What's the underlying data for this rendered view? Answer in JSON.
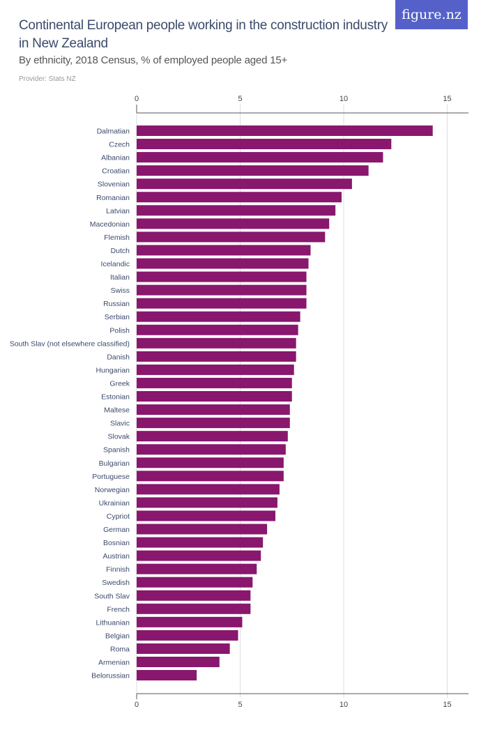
{
  "header": {
    "title": "Continental European people working in the construction industry in New Zealand",
    "subtitle": "By ethnicity, 2018 Census, % of employed people aged 15+",
    "provider": "Provider: Stats NZ",
    "logo_text": "figure.nz"
  },
  "colors": {
    "bar": "#88176d",
    "logo_bg": "#5561c9",
    "title": "#3b4a6b"
  },
  "chart_data": {
    "type": "bar",
    "orientation": "horizontal",
    "title": "Continental European people working in the construction industry in New Zealand",
    "subtitle": "By ethnicity, 2018 Census, % of employed people aged 15+",
    "xlim": [
      0,
      16
    ],
    "xticks": [
      0,
      5,
      10,
      15
    ],
    "grid": true,
    "categories": [
      "Dalmatian",
      "Czech",
      "Albanian",
      "Croatian",
      "Slovenian",
      "Romanian",
      "Latvian",
      "Macedonian",
      "Flemish",
      "Dutch",
      "Icelandic",
      "Italian",
      "Swiss",
      "Russian",
      "Serbian",
      "Polish",
      "South Slav (not elsewhere classified)",
      "Danish",
      "Hungarian",
      "Greek",
      "Estonian",
      "Maltese",
      "Slavic",
      "Slovak",
      "Spanish",
      "Bulgarian",
      "Portuguese",
      "Norwegian",
      "Ukrainian",
      "Cypriot",
      "German",
      "Bosnian",
      "Austrian",
      "Finnish",
      "Swedish",
      "South Slav",
      "French",
      "Lithuanian",
      "Belgian",
      "Roma",
      "Armenian",
      "Belorussian"
    ],
    "values": [
      14.3,
      12.3,
      11.9,
      11.2,
      10.4,
      9.9,
      9.6,
      9.3,
      9.1,
      8.4,
      8.3,
      8.2,
      8.2,
      8.2,
      7.9,
      7.8,
      7.7,
      7.7,
      7.6,
      7.5,
      7.5,
      7.4,
      7.4,
      7.3,
      7.2,
      7.1,
      7.1,
      6.9,
      6.8,
      6.7,
      6.3,
      6.1,
      6.0,
      5.8,
      5.6,
      5.5,
      5.5,
      5.1,
      4.9,
      4.5,
      4.0,
      2.9
    ]
  }
}
